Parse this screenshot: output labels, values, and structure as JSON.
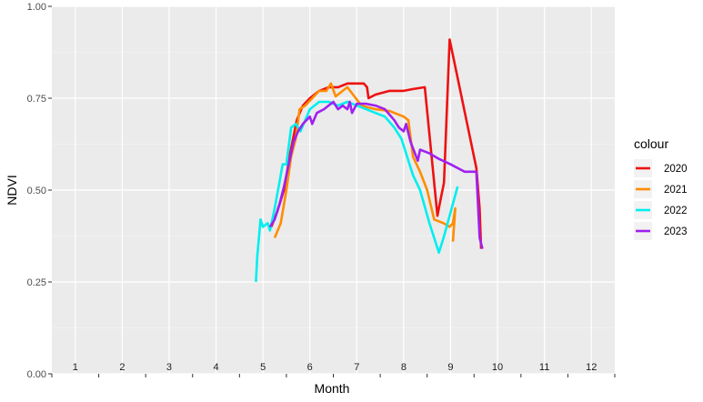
{
  "chart_data": {
    "type": "line",
    "xlabel": "Month",
    "ylabel": "NDVI",
    "xlim": [
      0.5,
      12.5
    ],
    "ylim": [
      0,
      1
    ],
    "y_ticks": [
      "0.00",
      "0.25",
      "0.50",
      "0.75",
      "1.00"
    ],
    "month_labels": [
      "1",
      "2",
      "3",
      "4",
      "5",
      "6",
      "7",
      "8",
      "9",
      "10",
      "11",
      "12"
    ],
    "grid": true,
    "legend": {
      "title": "colour",
      "position": "right"
    },
    "series": [
      {
        "name": "2020",
        "color": "#ee1111",
        "points": [
          [
            5.18,
            0.4
          ],
          [
            5.3,
            0.44
          ],
          [
            5.45,
            0.5
          ],
          [
            5.58,
            0.6
          ],
          [
            5.72,
            0.69
          ],
          [
            5.85,
            0.73
          ],
          [
            6.0,
            0.75
          ],
          [
            6.2,
            0.77
          ],
          [
            6.4,
            0.78
          ],
          [
            6.6,
            0.78
          ],
          [
            6.8,
            0.79
          ],
          [
            7.0,
            0.79
          ],
          [
            7.15,
            0.79
          ],
          [
            7.22,
            0.78
          ],
          [
            7.25,
            0.75
          ],
          [
            7.4,
            0.76
          ],
          [
            7.7,
            0.77
          ],
          [
            8.0,
            0.77
          ],
          [
            8.2,
            0.775
          ],
          [
            8.45,
            0.78
          ],
          [
            8.72,
            0.43
          ],
          [
            8.78,
            0.47
          ],
          [
            8.86,
            0.52
          ],
          [
            8.98,
            0.91
          ],
          [
            9.55,
            0.56
          ],
          [
            9.62,
            0.45
          ],
          [
            9.65,
            0.34
          ]
        ]
      },
      {
        "name": "2021",
        "color": "#ff8c00",
        "points": [
          [
            5.25,
            0.37
          ],
          [
            5.38,
            0.41
          ],
          [
            5.5,
            0.5
          ],
          [
            5.6,
            0.59
          ],
          [
            5.7,
            0.64
          ],
          [
            5.78,
            0.72
          ],
          [
            5.9,
            0.73
          ],
          [
            6.05,
            0.75
          ],
          [
            6.2,
            0.77
          ],
          [
            6.35,
            0.77
          ],
          [
            6.45,
            0.79
          ],
          [
            6.55,
            0.755
          ],
          [
            6.7,
            0.77
          ],
          [
            6.8,
            0.78
          ],
          [
            6.95,
            0.755
          ],
          [
            7.1,
            0.73
          ],
          [
            7.4,
            0.72
          ],
          [
            7.7,
            0.715
          ],
          [
            8.0,
            0.7
          ],
          [
            8.1,
            0.69
          ],
          [
            8.2,
            0.59
          ],
          [
            8.35,
            0.55
          ],
          [
            8.5,
            0.5
          ],
          [
            8.65,
            0.42
          ],
          [
            8.85,
            0.41
          ],
          [
            8.98,
            0.4
          ],
          [
            9.05,
            0.41
          ],
          [
            9.1,
            0.45
          ],
          [
            9.05,
            0.36
          ]
        ]
      },
      {
        "name": "2022",
        "color": "#00eeee",
        "points": [
          [
            4.85,
            0.25
          ],
          [
            4.88,
            0.32
          ],
          [
            4.95,
            0.42
          ],
          [
            5.0,
            0.4
          ],
          [
            5.1,
            0.41
          ],
          [
            5.15,
            0.39
          ],
          [
            5.25,
            0.45
          ],
          [
            5.35,
            0.52
          ],
          [
            5.42,
            0.57
          ],
          [
            5.5,
            0.57
          ],
          [
            5.6,
            0.67
          ],
          [
            5.7,
            0.68
          ],
          [
            5.8,
            0.66
          ],
          [
            6.0,
            0.72
          ],
          [
            6.2,
            0.74
          ],
          [
            6.4,
            0.74
          ],
          [
            6.6,
            0.73
          ],
          [
            6.8,
            0.74
          ],
          [
            7.0,
            0.73
          ],
          [
            7.2,
            0.72
          ],
          [
            7.4,
            0.71
          ],
          [
            7.6,
            0.7
          ],
          [
            7.8,
            0.67
          ],
          [
            7.95,
            0.64
          ],
          [
            8.05,
            0.6
          ],
          [
            8.2,
            0.54
          ],
          [
            8.35,
            0.5
          ],
          [
            8.55,
            0.41
          ],
          [
            8.75,
            0.33
          ],
          [
            8.85,
            0.37
          ],
          [
            9.0,
            0.44
          ],
          [
            9.15,
            0.51
          ]
        ]
      },
      {
        "name": "2023",
        "color": "#a020f0",
        "points": [
          [
            5.15,
            0.4
          ],
          [
            5.25,
            0.42
          ],
          [
            5.35,
            0.46
          ],
          [
            5.45,
            0.51
          ],
          [
            5.55,
            0.57
          ],
          [
            5.65,
            0.63
          ],
          [
            5.75,
            0.66
          ],
          [
            5.85,
            0.68
          ],
          [
            6.0,
            0.7
          ],
          [
            6.05,
            0.68
          ],
          [
            6.15,
            0.71
          ],
          [
            6.3,
            0.72
          ],
          [
            6.5,
            0.74
          ],
          [
            6.6,
            0.72
          ],
          [
            6.7,
            0.73
          ],
          [
            6.8,
            0.72
          ],
          [
            6.85,
            0.74
          ],
          [
            6.9,
            0.71
          ],
          [
            7.0,
            0.735
          ],
          [
            7.2,
            0.735
          ],
          [
            7.4,
            0.73
          ],
          [
            7.6,
            0.72
          ],
          [
            7.8,
            0.69
          ],
          [
            7.9,
            0.67
          ],
          [
            8.0,
            0.66
          ],
          [
            8.05,
            0.68
          ],
          [
            8.15,
            0.63
          ],
          [
            8.3,
            0.58
          ],
          [
            8.35,
            0.61
          ],
          [
            8.55,
            0.6
          ],
          [
            8.75,
            0.585
          ],
          [
            9.0,
            0.57
          ],
          [
            9.3,
            0.55
          ],
          [
            9.55,
            0.55
          ],
          [
            9.62,
            0.37
          ],
          [
            9.68,
            0.34
          ]
        ]
      }
    ]
  }
}
